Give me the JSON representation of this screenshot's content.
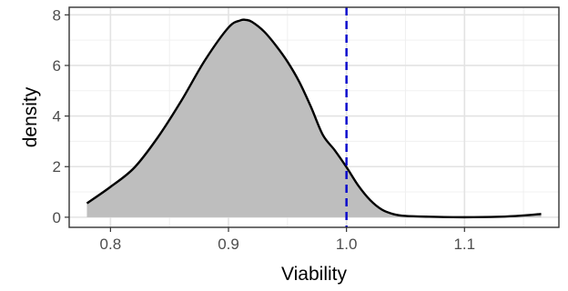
{
  "chart_data": {
    "type": "area",
    "xlabel": "Viability",
    "ylabel": "density",
    "xlim": [
      0.765,
      1.18
    ],
    "ylim": [
      -0.4,
      8.3
    ],
    "x_ticks": [
      0.8,
      0.9,
      1.0,
      1.1
    ],
    "x_tick_labels": [
      "0.8",
      "0.9",
      "1.0",
      "1.1"
    ],
    "x_minor_breaks": [
      0.85,
      0.95,
      1.05,
      1.15
    ],
    "y_ticks": [
      0,
      2,
      4,
      6,
      8
    ],
    "y_tick_labels": [
      "0",
      "2",
      "4",
      "6",
      "8"
    ],
    "y_minor_breaks": [
      1,
      3,
      5,
      7
    ],
    "grid": true,
    "series": [
      {
        "x": [
          0.78,
          0.8,
          0.82,
          0.84,
          0.86,
          0.88,
          0.9,
          0.91,
          0.915,
          0.92,
          0.93,
          0.94,
          0.95,
          0.96,
          0.97,
          0.98,
          0.99,
          1.0,
          1.01,
          1.02,
          1.03,
          1.04,
          1.05,
          1.07,
          1.1,
          1.13,
          1.15,
          1.165
        ],
        "values": [
          0.55,
          1.2,
          1.95,
          3.15,
          4.6,
          6.2,
          7.5,
          7.78,
          7.8,
          7.72,
          7.35,
          6.8,
          6.15,
          5.35,
          4.35,
          3.25,
          2.65,
          1.98,
          1.25,
          0.68,
          0.3,
          0.12,
          0.05,
          0.02,
          0.0,
          0.02,
          0.07,
          0.13
        ]
      }
    ],
    "fill_color": "#bebebe",
    "line_color": "#000000",
    "reference_line": {
      "x": 1.0,
      "color": "#0000cc",
      "style": "dashed"
    }
  }
}
